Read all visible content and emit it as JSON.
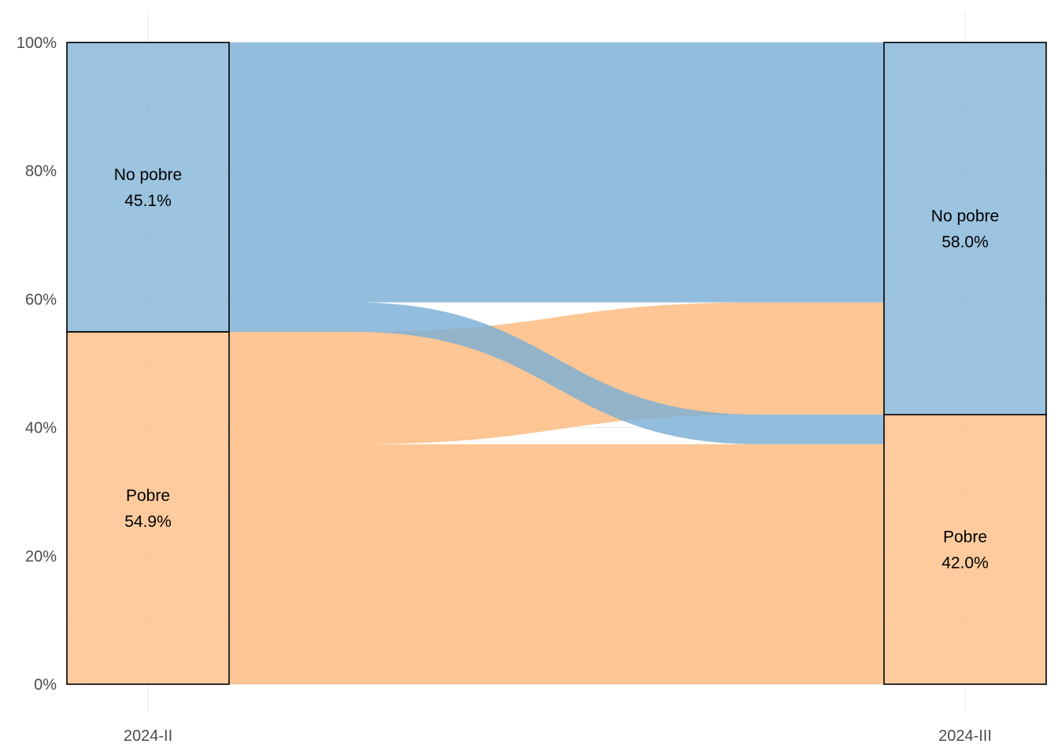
{
  "chart_data": {
    "type": "alluvial",
    "x": [
      "2024-II",
      "2024-III"
    ],
    "ylim": [
      0,
      100
    ],
    "y_ticks": [
      "0%",
      "20%",
      "40%",
      "60%",
      "80%",
      "100%"
    ],
    "grid": true,
    "colors": {
      "No pobre": "#7bafd4",
      "Pobre": "#fdb97d",
      "border": "#000000"
    },
    "stratum_order": [
      "No pobre",
      "Pobre"
    ],
    "strata": {
      "2024-II": [
        {
          "name": "No pobre",
          "value": 45.1,
          "label": "45.1%"
        },
        {
          "name": "Pobre",
          "value": 54.9,
          "label": "54.9%"
        }
      ],
      "2024-III": [
        {
          "name": "No pobre",
          "value": 58.0,
          "label": "58.0%"
        },
        {
          "name": "Pobre",
          "value": 42.0,
          "label": "42.0%"
        }
      ]
    },
    "flows": [
      {
        "from": "No pobre",
        "to": "No pobre",
        "value": 40.5
      },
      {
        "from": "No pobre",
        "to": "Pobre",
        "value": 4.6
      },
      {
        "from": "Pobre",
        "to": "No pobre",
        "value": 17.5
      },
      {
        "from": "Pobre",
        "to": "Pobre",
        "value": 37.4
      }
    ]
  }
}
